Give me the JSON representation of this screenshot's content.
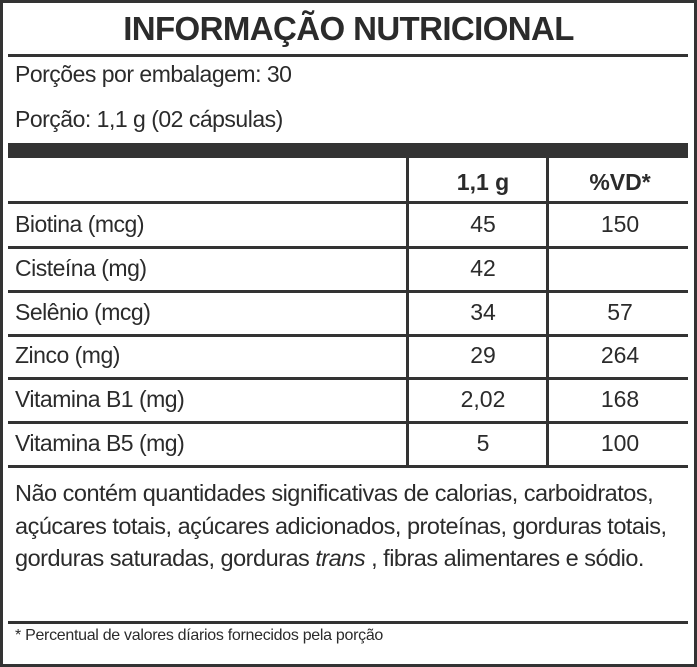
{
  "title": "INFORMAÇÃO NUTRICIONAL",
  "servings_per_package": "Porções por embalagem: 30",
  "serving_size": "Porção: 1,1 g (02 cápsulas)",
  "columns": {
    "amount": "1,1 g",
    "daily_value": "%VD*"
  },
  "rows": [
    {
      "name": "Biotina (mcg)",
      "amount": "45",
      "dv": "150"
    },
    {
      "name": "Cisteína (mg)",
      "amount": "42",
      "dv": ""
    },
    {
      "name": "Selênio (mcg)",
      "amount": "34",
      "dv": "57"
    },
    {
      "name": "Zinco (mg)",
      "amount": "29",
      "dv": "264"
    },
    {
      "name": "Vitamina B1 (mg)",
      "amount": "2,02",
      "dv": "168"
    },
    {
      "name": "Vitamina B5 (mg)",
      "amount": "5",
      "dv": "100"
    }
  ],
  "notice": {
    "part1": "Não contém quantidades significativas de calorias, carboidratos, açúcares totais, açúcares adicionados, proteínas, gorduras totais, gorduras saturadas, gorduras ",
    "italic": "trans",
    "part2": " , fibras alimentares e sódio."
  },
  "footnote": "* Percentual de valores díarios fornecidos pela porção"
}
